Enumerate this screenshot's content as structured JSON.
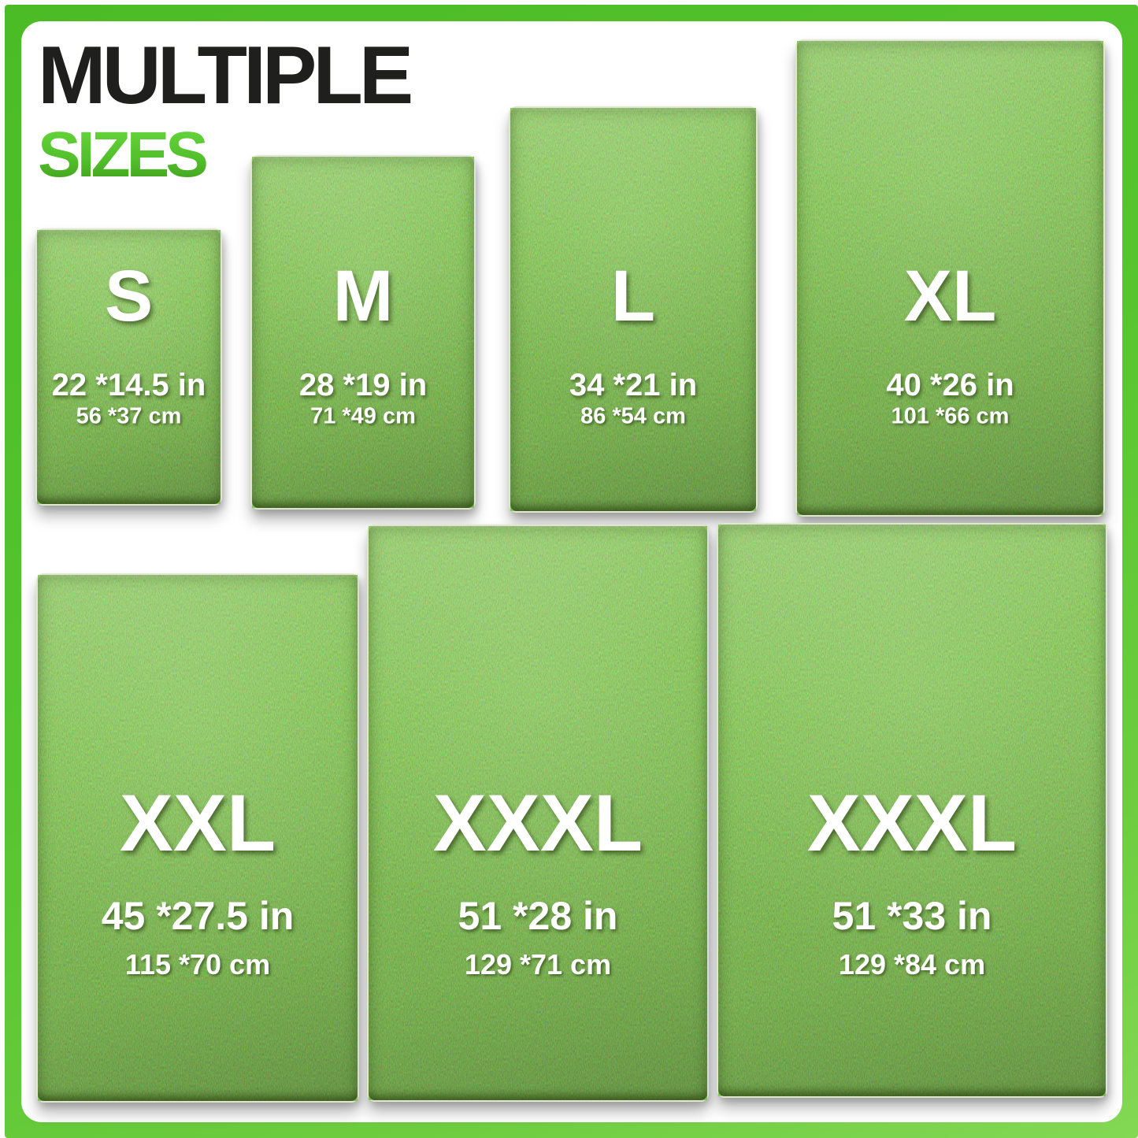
{
  "title": {
    "line1": "MULTIPLE",
    "line2": "SIZES"
  },
  "colors": {
    "accent_green": "#53c02c",
    "frame_green": "#55c42e",
    "heading_black": "#1f1f1d",
    "grass_base": "#6a9c2a",
    "label_text": "#ffffff"
  },
  "mats": [
    {
      "label": "S",
      "inches": "22 *14.5 in",
      "cm": "56 *37 cm"
    },
    {
      "label": "M",
      "inches": "28 *19 in",
      "cm": "71 *49 cm"
    },
    {
      "label": "L",
      "inches": "34 *21 in",
      "cm": "86 *54 cm"
    },
    {
      "label": "XL",
      "inches": "40 *26 in",
      "cm": "101 *66 cm"
    },
    {
      "label": "XXL",
      "inches": "45 *27.5 in",
      "cm": "115 *70 cm"
    },
    {
      "label": "XXXL",
      "inches": "51 *28 in",
      "cm": "129 *71 cm"
    },
    {
      "label": "XXXL",
      "inches": "51 *33 in",
      "cm": "129 *84 cm"
    }
  ]
}
